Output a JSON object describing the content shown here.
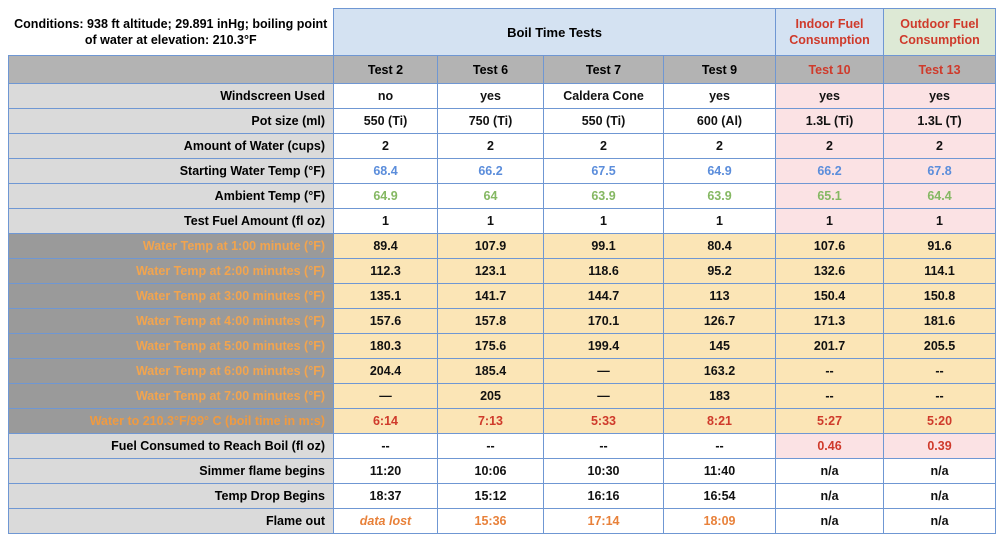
{
  "conditions": {
    "line1": "Conditions: 938 ft altitude; 29.891 inHg; boiling point",
    "line2": "of water at elevation: 210.3°F"
  },
  "chart_data": {
    "type": "table",
    "title": "Boil Time Tests",
    "column_groups": [
      {
        "label": "Boil Time Tests",
        "span": 4
      },
      {
        "label": "Indoor Fuel Consumption",
        "span": 1
      },
      {
        "label": "Outdoor Fuel Consumption",
        "span": 1
      }
    ],
    "columns": [
      "Test 2",
      "Test 6",
      "Test 7",
      "Test 9",
      "Test 10",
      "Test 13"
    ],
    "rows": [
      {
        "label": "Windscreen Used",
        "kind": "plain",
        "values": [
          "no",
          "yes",
          "Caldera Cone",
          "yes",
          "yes",
          "yes"
        ]
      },
      {
        "label": "Pot size (ml)",
        "kind": "plain",
        "values": [
          "550 (Ti)",
          "750 (Ti)",
          "550 (Ti)",
          "600 (Al)",
          "1.3L (Ti)",
          "1.3L (T)"
        ]
      },
      {
        "label": "Amount of Water (cups)",
        "kind": "plain",
        "values": [
          "2",
          "2",
          "2",
          "2",
          "2",
          "2"
        ]
      },
      {
        "label": "Starting Water Temp (°F)",
        "kind": "blue",
        "values": [
          "68.4",
          "66.2",
          "67.5",
          "64.9",
          "66.2",
          "67.8"
        ]
      },
      {
        "label": "Ambient Temp (°F)",
        "kind": "green",
        "values": [
          "64.9",
          "64",
          "63.9",
          "63.9",
          "65.1",
          "64.4"
        ]
      },
      {
        "label": "Test Fuel Amount (fl oz)",
        "kind": "plain",
        "values": [
          "1",
          "1",
          "1",
          "1",
          "1",
          "1"
        ]
      },
      {
        "label": "Water Temp at 1:00 minute (°F)",
        "kind": "water",
        "values": [
          "89.4",
          "107.9",
          "99.1",
          "80.4",
          "107.6",
          "91.6"
        ]
      },
      {
        "label": "Water Temp at 2:00 minutes (°F)",
        "kind": "water",
        "values": [
          "112.3",
          "123.1",
          "118.6",
          "95.2",
          "132.6",
          "114.1"
        ]
      },
      {
        "label": "Water Temp at 3:00 minutes (°F)",
        "kind": "water",
        "values": [
          "135.1",
          "141.7",
          "144.7",
          "113",
          "150.4",
          "150.8"
        ]
      },
      {
        "label": "Water Temp at 4:00 minutes (°F)",
        "kind": "water",
        "values": [
          "157.6",
          "157.8",
          "170.1",
          "126.7",
          "171.3",
          "181.6"
        ]
      },
      {
        "label": "Water Temp at 5:00 minutes (°F)",
        "kind": "water",
        "values": [
          "180.3",
          "175.6",
          "199.4",
          "145",
          "201.7",
          "205.5"
        ]
      },
      {
        "label": "Water Temp at 6:00 minutes (°F)",
        "kind": "water",
        "values": [
          "204.4",
          "185.4",
          "—",
          "163.2",
          "--",
          "--"
        ]
      },
      {
        "label": "Water Temp at 7:00 minutes (°F)",
        "kind": "water",
        "values": [
          "—",
          "205",
          "—",
          "183",
          "--",
          "--"
        ]
      },
      {
        "label": "Water to 210.3°F/99° C (boil time in m:s)",
        "kind": "boil",
        "values": [
          "6:14",
          "7:13",
          "5:33",
          "8:21",
          "5:27",
          "5:20"
        ]
      },
      {
        "label": "Fuel Consumed to Reach Boil (fl oz)",
        "kind": "fuel",
        "values": [
          "--",
          "--",
          "--",
          "--",
          "0.46",
          "0.39"
        ]
      },
      {
        "label": "Simmer flame begins",
        "kind": "white",
        "values": [
          "11:20",
          "10:06",
          "10:30",
          "11:40",
          "n/a",
          "n/a"
        ]
      },
      {
        "label": "Temp Drop Begins",
        "kind": "white",
        "values": [
          "18:37",
          "15:12",
          "16:16",
          "16:54",
          "n/a",
          "n/a"
        ]
      },
      {
        "label": "Flame out",
        "kind": "flame",
        "values": [
          "data lost",
          "15:36",
          "17:14",
          "18:09",
          "n/a",
          "n/a"
        ]
      }
    ]
  },
  "colors": {
    "border_blue": "#6f97d3",
    "header_blue_bg": "#d4e2f2",
    "header_green_bg": "#dde9d5",
    "test_row_gray_bg": "#b3b3b3",
    "label_light_gray_bg": "#dadada",
    "label_dark_gray_bg": "#9a9a9a",
    "water_temp_tan_bg": "#fbe5b6",
    "fuel_pink_bg": "#fbe2e4",
    "red_text": "#cf3a2b",
    "orange_label_text": "#f2a44e",
    "orange_value_text": "#e8813a",
    "blue_value_text": "#5b8ddb",
    "green_value_text": "#85b863"
  }
}
